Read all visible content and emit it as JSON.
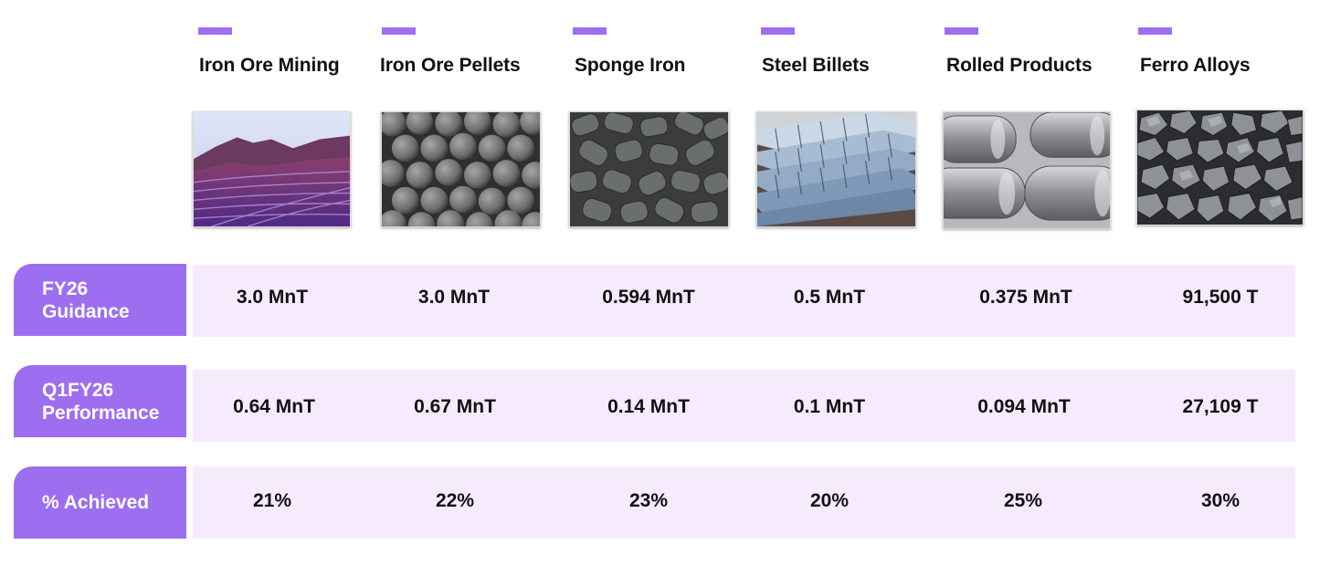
{
  "theme": {
    "accent": "#9d6ef0",
    "band": "#f6eafd"
  },
  "products": [
    {
      "name": "Iron Ore Mining",
      "image": "open-pit-mine-photo"
    },
    {
      "name": "Iron Ore Pellets",
      "image": "iron-ore-pellets-photo"
    },
    {
      "name": "Sponge Iron",
      "image": "sponge-iron-photo"
    },
    {
      "name": "Steel Billets",
      "image": "steel-billets-photo"
    },
    {
      "name": "Rolled Products",
      "image": "steel-coils-photo"
    },
    {
      "name": "Ferro Alloys",
      "image": "ferro-alloys-photo"
    }
  ],
  "rows": [
    {
      "label_line1": "FY26",
      "label_line2": "Guidance",
      "values": [
        "3.0 MnT",
        "3.0 MnT",
        "0.594 MnT",
        "0.5 MnT",
        "0.375 MnT",
        "91,500 T"
      ]
    },
    {
      "label_line1": "Q1FY26",
      "label_line2": "Performance",
      "values": [
        "0.64 MnT",
        "0.67 MnT",
        "0.14 MnT",
        "0.1 MnT",
        "0.094 MnT",
        "27,109 T"
      ]
    },
    {
      "label_line1": "% Achieved",
      "label_line2": "",
      "values": [
        "21%",
        "22%",
        "23%",
        "20%",
        "25%",
        "30%"
      ]
    }
  ]
}
